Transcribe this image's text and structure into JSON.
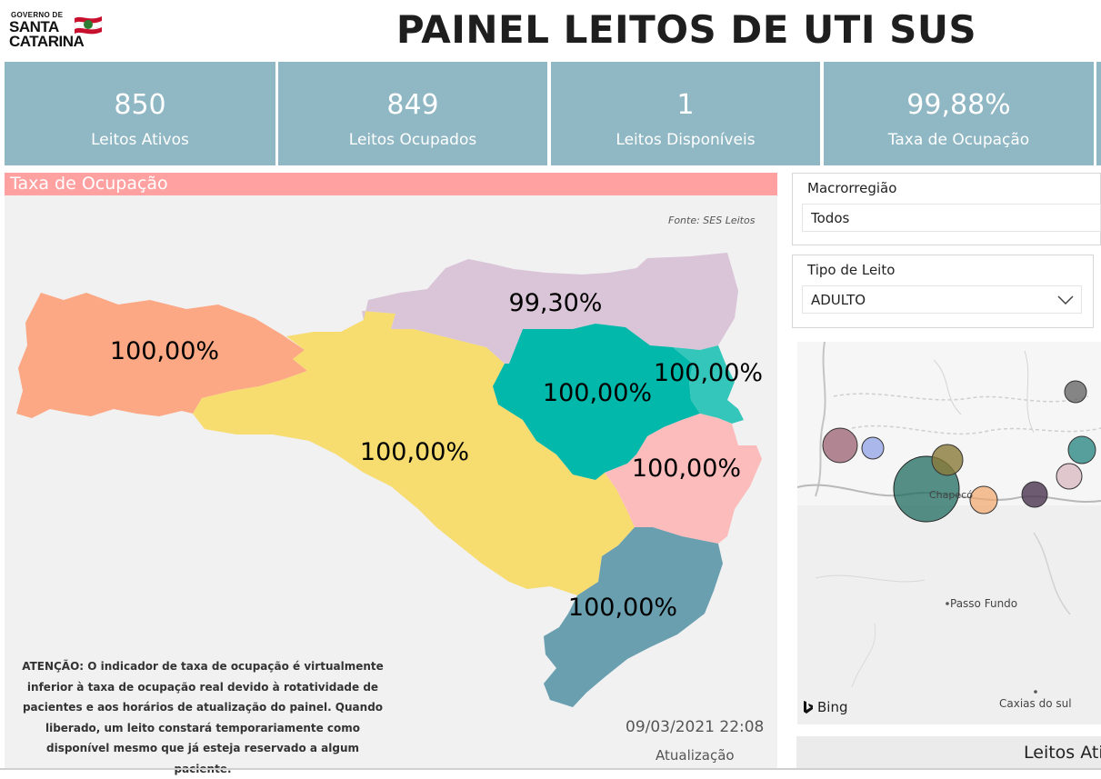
{
  "header": {
    "logo_top": "GOVERNO DE",
    "logo_line1": "SANTA",
    "logo_line2": "CATARINA",
    "title": "PAINEL LEITOS DE UTI SUS"
  },
  "kpis": [
    {
      "value": "850",
      "label": "Leitos Ativos"
    },
    {
      "value": "849",
      "label": "Leitos Ocupados"
    },
    {
      "value": "1",
      "label": "Leitos Disponíveis"
    },
    {
      "value": "99,88%",
      "label": "Taxa de Ocupação"
    }
  ],
  "map_section": {
    "title": "Taxa de Ocupação",
    "source": "Fonte: SES Leitos",
    "regions": [
      {
        "name": "oeste",
        "value": "100,00%",
        "color": "#fca884"
      },
      {
        "name": "meio-oeste",
        "value": "100,00%",
        "color": "#f7dc6f"
      },
      {
        "name": "planalto-norte",
        "value": "99,30%",
        "color": "#d9c4d8"
      },
      {
        "name": "vale-itajai",
        "value": "100,00%",
        "color": "#01b8aa"
      },
      {
        "name": "nordeste",
        "value": "100,00%",
        "color": "#34c6bb"
      },
      {
        "name": "grande-florianopolis",
        "value": "100,00%",
        "color": "#fcbcbc"
      },
      {
        "name": "sul",
        "value": "100,00%",
        "color": "#6a9fb0"
      }
    ],
    "note": "ATENÇÃO: O indicador de taxa de ocupação é virtualmente inferior à taxa de ocupação real devido à rotatividade de pacientes e aos horários de atualização do painel.  Quando liberado, um leito constará temporariamente como disponível mesmo que já esteja reservado a algum paciente.",
    "update_date": "09/03/2021 22:08",
    "update_label": "Atualização"
  },
  "filters": {
    "macro": {
      "label": "Macrorregião",
      "value": "Todos"
    },
    "tipo": {
      "label": "Tipo de Leito",
      "value": "ADULTO"
    }
  },
  "bing_map": {
    "brand": "Bing",
    "cities": [
      "Chapecó",
      "Passo Fundo",
      "Caxias do sul"
    ]
  },
  "bottom_card": {
    "label": "Leitos Ati"
  }
}
